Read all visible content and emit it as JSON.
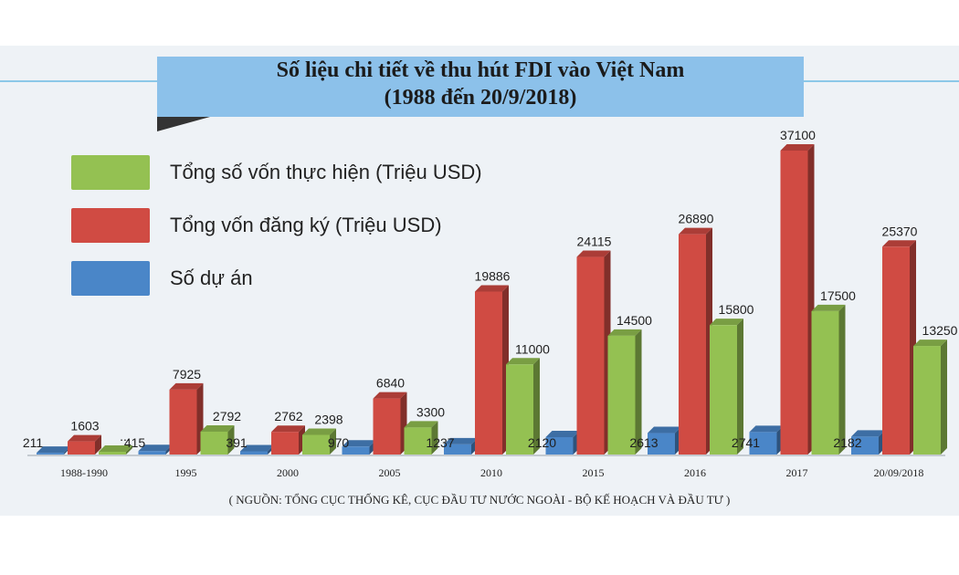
{
  "chart_data": {
    "type": "bar",
    "title": "Số liệu chi tiết về thu hút FDI vào Việt Nam",
    "subtitle": "(1988 đến 20/9/2018)",
    "categories": [
      "1988-1990",
      "1995",
      "2000",
      "2005",
      "2010",
      "2015",
      "2016",
      "2017",
      "20/09/2018"
    ],
    "series": [
      {
        "name": "Số dự án",
        "color": "#4a86c8",
        "values": [
          211,
          415,
          391,
          970,
          1237,
          2120,
          2613,
          2741,
          2182
        ],
        "labels": [
          "211",
          "415",
          "391",
          "970",
          "1237",
          "2120",
          "2613",
          "2741",
          "2182"
        ]
      },
      {
        "name": "Tổng vốn đăng ký (Triệu USD)",
        "color": "#d04b43",
        "values": [
          1603,
          7925,
          2762,
          6840,
          19886,
          24115,
          26890,
          37100,
          25370
        ],
        "labels": [
          "1603",
          "7925",
          "2762",
          "6840",
          "19886",
          "24115",
          "26890",
          "37100",
          "25370"
        ]
      },
      {
        "name": "Tổng số vốn thực hiện (Triệu USD)",
        "color": "#94c152",
        "values": [
          null,
          2792,
          2398,
          3300,
          11000,
          14500,
          15800,
          17500,
          13250
        ],
        "labels": [
          "...",
          "2792",
          "2398",
          "3300",
          "11000",
          "14500",
          "15800",
          "17500",
          "13250"
        ]
      }
    ],
    "legend_order": [
      "Tổng số vốn thực hiện (Triệu USD)",
      "Tổng vốn đăng ký (Triệu USD)",
      "Số dự án"
    ],
    "legend_placement": "top-left",
    "ylim": [
      0,
      37100
    ],
    "grid": false,
    "source": "( NGUỒN: TỔNG CỤC THỐNG KÊ, CỤC ĐẦU TƯ NƯỚC NGOÀI - BỘ KẾ HOẠCH VÀ ĐẦU TƯ )"
  }
}
